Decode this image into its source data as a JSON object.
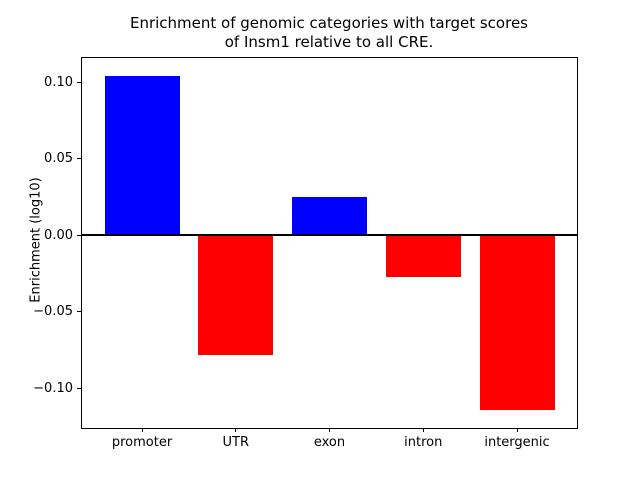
{
  "chart_data": {
    "type": "bar",
    "title": "Enrichment of genomic categories with target scores of Insm1 relative to all CRE.",
    "title_lines": [
      "Enrichment of genomic categories with target scores",
      "of Insm1 relative to all CRE."
    ],
    "categories": [
      "promoter",
      "UTR",
      "exon",
      "intron",
      "intergenic"
    ],
    "values": [
      0.104,
      -0.078,
      0.025,
      -0.027,
      -0.114
    ],
    "bar_colors": [
      "#0000ff",
      "#ff0000",
      "#0000ff",
      "#ff0000",
      "#ff0000"
    ],
    "positive_color": "#0000ff",
    "negative_color": "#ff0000",
    "xlabel": "",
    "ylabel": "Enrichment (log10)",
    "ylim": [
      -0.126,
      0.116
    ],
    "xlim": [
      -0.64,
      4.64
    ],
    "yticks": [
      0.1,
      0.05,
      0.0,
      -0.05,
      -0.1
    ],
    "ytick_labels": [
      "0.10",
      "0.05",
      "0.00",
      "−0.05",
      "−0.10"
    ],
    "bar_width_fraction": 0.8,
    "zero_line_value": 0,
    "grid": false,
    "legend": null,
    "axis_color": "#000000",
    "text_color": "#000000",
    "background_color": "#ffffff"
  }
}
